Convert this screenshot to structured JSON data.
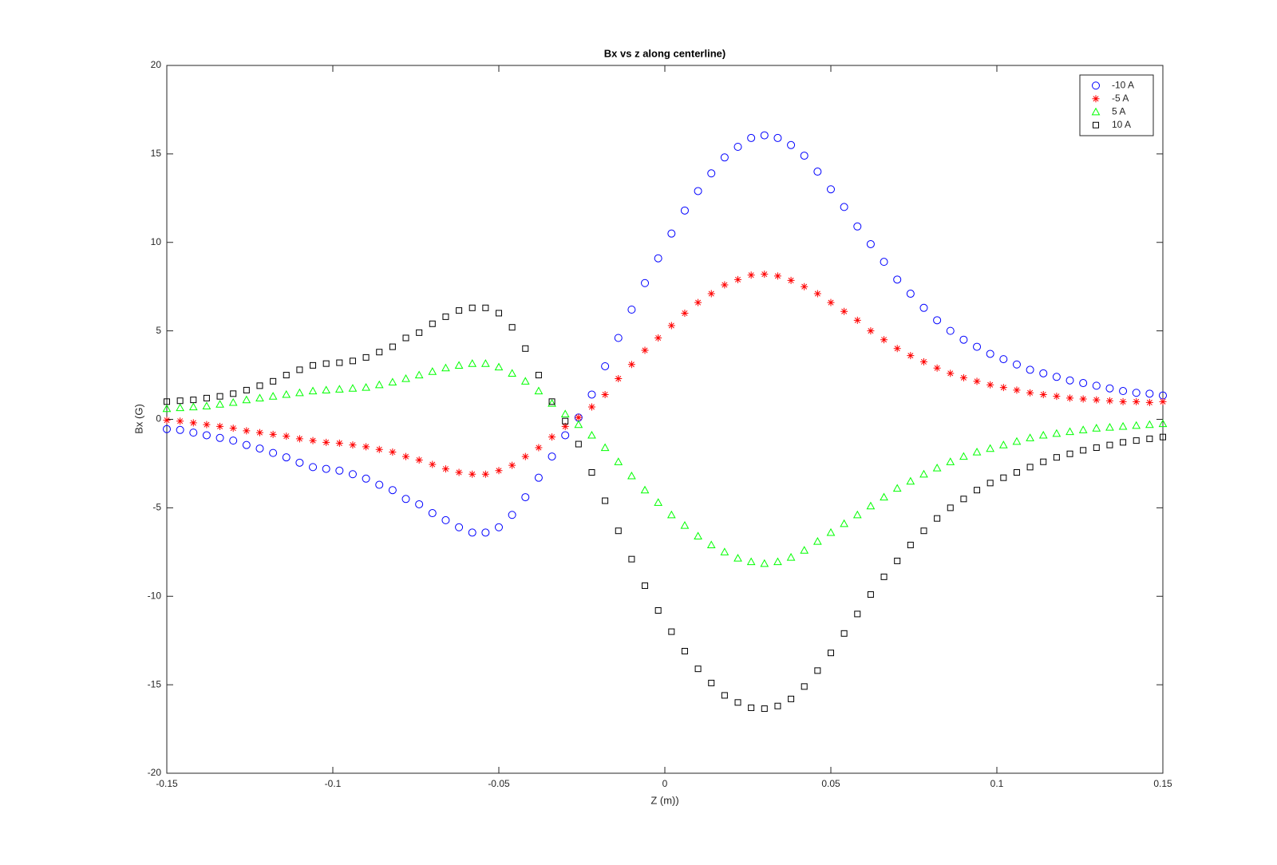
{
  "chart_data": {
    "type": "scatter",
    "title": "Bx vs z along centerline)",
    "x_label": "Z (m))",
    "y_label": "Bx (G)",
    "x": [
      -0.15,
      -0.146,
      -0.142,
      -0.138,
      -0.134,
      -0.13,
      -0.126,
      -0.122,
      -0.118,
      -0.114,
      -0.11,
      -0.106,
      -0.102,
      -0.098,
      -0.094,
      -0.09,
      -0.086,
      -0.082,
      -0.078,
      -0.074,
      -0.07,
      -0.066,
      -0.062,
      -0.058,
      -0.054,
      -0.05,
      -0.046,
      -0.042,
      -0.038,
      -0.034,
      -0.03,
      -0.026,
      -0.022,
      -0.018,
      -0.014,
      -0.01,
      -0.006,
      -0.002,
      0.002,
      0.006,
      0.01,
      0.014,
      0.018,
      0.022,
      0.026,
      0.03,
      0.034,
      0.038,
      0.042,
      0.046,
      0.05,
      0.054,
      0.058,
      0.062,
      0.066,
      0.07,
      0.074,
      0.078,
      0.082,
      0.086,
      0.09,
      0.094,
      0.098,
      0.102,
      0.106,
      0.11,
      0.114,
      0.118,
      0.122,
      0.126,
      0.13,
      0.134,
      0.138,
      0.142,
      0.146,
      0.15
    ],
    "series": [
      {
        "name": "-10 A",
        "color": "#0000ff",
        "marker": "circle",
        "values": [
          -0.55,
          -0.6,
          -0.75,
          -0.9,
          -1.05,
          -1.2,
          -1.45,
          -1.65,
          -1.9,
          -2.15,
          -2.45,
          -2.7,
          -2.8,
          -2.9,
          -3.1,
          -3.35,
          -3.7,
          -4.0,
          -4.5,
          -4.8,
          -5.3,
          -5.7,
          -6.1,
          -6.4,
          -6.4,
          -6.1,
          -5.4,
          -4.4,
          -3.3,
          -2.1,
          -0.9,
          0.1,
          1.4,
          3.0,
          4.6,
          6.2,
          7.7,
          9.1,
          10.5,
          11.8,
          12.9,
          13.9,
          14.8,
          15.4,
          15.9,
          16.05,
          15.9,
          15.5,
          14.9,
          14.0,
          13.0,
          12.0,
          10.9,
          9.9,
          8.9,
          7.9,
          7.1,
          6.3,
          5.6,
          5.0,
          4.5,
          4.1,
          3.7,
          3.4,
          3.1,
          2.8,
          2.6,
          2.4,
          2.2,
          2.05,
          1.9,
          1.75,
          1.6,
          1.5,
          1.45,
          1.35
        ]
      },
      {
        "name": "-5 A",
        "color": "#ff0000",
        "marker": "asterisk",
        "values": [
          -0.05,
          -0.1,
          -0.2,
          -0.3,
          -0.4,
          -0.5,
          -0.65,
          -0.75,
          -0.85,
          -0.95,
          -1.1,
          -1.2,
          -1.3,
          -1.35,
          -1.45,
          -1.55,
          -1.7,
          -1.85,
          -2.1,
          -2.3,
          -2.55,
          -2.8,
          -3.0,
          -3.1,
          -3.1,
          -2.9,
          -2.6,
          -2.1,
          -1.6,
          -1.0,
          -0.4,
          0.1,
          0.7,
          1.4,
          2.3,
          3.1,
          3.9,
          4.6,
          5.3,
          6.0,
          6.6,
          7.1,
          7.6,
          7.9,
          8.15,
          8.2,
          8.1,
          7.85,
          7.5,
          7.1,
          6.6,
          6.1,
          5.6,
          5.0,
          4.5,
          4.0,
          3.6,
          3.25,
          2.9,
          2.6,
          2.35,
          2.15,
          1.95,
          1.8,
          1.65,
          1.5,
          1.4,
          1.3,
          1.2,
          1.15,
          1.1,
          1.05,
          1.0,
          1.0,
          0.95,
          1.0
        ]
      },
      {
        "name": "5 A",
        "color": "#00ff00",
        "marker": "triangle",
        "values": [
          0.6,
          0.65,
          0.7,
          0.75,
          0.85,
          0.95,
          1.1,
          1.2,
          1.3,
          1.4,
          1.5,
          1.6,
          1.65,
          1.7,
          1.75,
          1.8,
          1.95,
          2.1,
          2.3,
          2.5,
          2.7,
          2.9,
          3.05,
          3.15,
          3.15,
          2.95,
          2.6,
          2.15,
          1.6,
          0.9,
          0.3,
          -0.3,
          -0.9,
          -1.6,
          -2.4,
          -3.2,
          -4.0,
          -4.7,
          -5.4,
          -6.0,
          -6.6,
          -7.1,
          -7.5,
          -7.85,
          -8.05,
          -8.15,
          -8.05,
          -7.8,
          -7.4,
          -6.9,
          -6.4,
          -5.9,
          -5.4,
          -4.9,
          -4.4,
          -3.9,
          -3.5,
          -3.1,
          -2.75,
          -2.4,
          -2.1,
          -1.85,
          -1.65,
          -1.45,
          -1.25,
          -1.05,
          -0.9,
          -0.8,
          -0.7,
          -0.6,
          -0.5,
          -0.45,
          -0.4,
          -0.35,
          -0.3,
          -0.25
        ]
      },
      {
        "name": "10 A",
        "color": "#000000",
        "marker": "square",
        "values": [
          1.0,
          1.05,
          1.1,
          1.2,
          1.3,
          1.45,
          1.65,
          1.9,
          2.15,
          2.5,
          2.8,
          3.05,
          3.15,
          3.2,
          3.3,
          3.5,
          3.8,
          4.1,
          4.6,
          4.9,
          5.4,
          5.8,
          6.15,
          6.3,
          6.3,
          6.0,
          5.2,
          4.0,
          2.5,
          1.0,
          -0.1,
          -1.4,
          -3.0,
          -4.6,
          -6.3,
          -7.9,
          -9.4,
          -10.8,
          -12.0,
          -13.1,
          -14.1,
          -14.9,
          -15.6,
          -16.0,
          -16.3,
          -16.35,
          -16.2,
          -15.8,
          -15.1,
          -14.2,
          -13.2,
          -12.1,
          -11.0,
          -9.9,
          -8.9,
          -8.0,
          -7.1,
          -6.3,
          -5.6,
          -5.0,
          -4.5,
          -4.0,
          -3.6,
          -3.3,
          -3.0,
          -2.7,
          -2.4,
          -2.15,
          -1.95,
          -1.75,
          -1.6,
          -1.45,
          -1.3,
          -1.2,
          -1.1,
          -1.0
        ]
      }
    ],
    "xlim": [
      -0.15,
      0.15
    ],
    "xticks": [
      -0.15,
      -0.1,
      -0.05,
      0,
      0.05,
      0.1,
      0.15
    ],
    "ylim": [
      -20,
      20
    ],
    "yticks": [
      -20,
      -15,
      -10,
      -5,
      0,
      5,
      10,
      15,
      20
    ],
    "grid": false,
    "legend": "northeast"
  }
}
